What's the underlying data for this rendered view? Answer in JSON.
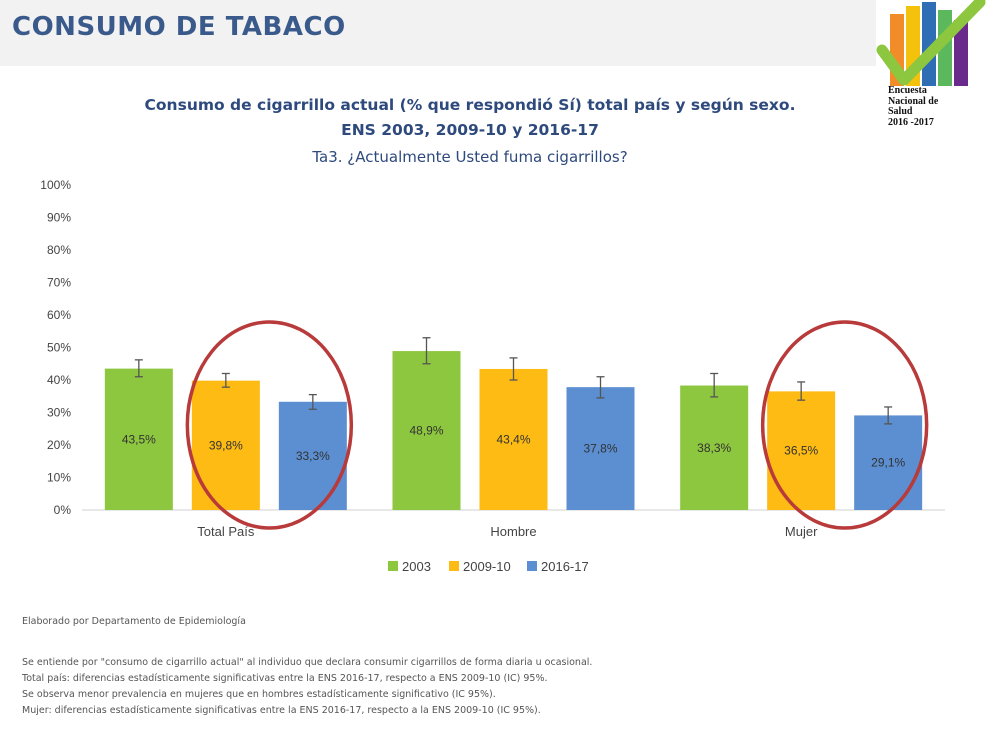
{
  "header": {
    "title": "CONSUMO DE TABACO",
    "logo_text": [
      "Encuesta",
      "Nacional de",
      "Salud",
      "2016 -2017"
    ]
  },
  "chart_data": {
    "type": "bar",
    "title_line1": "Consumo de cigarrillo actual (% que respondió Sí) total país y según sexo.",
    "title_line2": "ENS 2003, 2009-10 y 2016-17",
    "subtitle": "Ta3. ¿Actualmente Usted fuma cigarrillos?",
    "categories": [
      "Total País",
      "Hombre",
      "Mujer"
    ],
    "series": [
      {
        "name": "2003",
        "color": "#8dc63f",
        "values": [
          43.5,
          48.9,
          38.3
        ],
        "error": [
          [
            41.0,
            46.2
          ],
          [
            45.0,
            53.0
          ],
          [
            34.8,
            42.0
          ]
        ],
        "labels": [
          "43,5%",
          "48,9%",
          "38,3%"
        ]
      },
      {
        "name": "2009-10",
        "color": "#fdbb13",
        "values": [
          39.8,
          43.4,
          36.5
        ],
        "error": [
          [
            37.8,
            42.0
          ],
          [
            40.0,
            46.8
          ],
          [
            33.8,
            39.4
          ]
        ],
        "labels": [
          "39,8%",
          "43,4%",
          "36,5%"
        ]
      },
      {
        "name": "2016-17",
        "color": "#5b8fd1",
        "values": [
          33.3,
          37.8,
          29.1
        ],
        "error": [
          [
            31.0,
            35.5
          ],
          [
            34.5,
            41.0
          ],
          [
            26.5,
            31.7
          ]
        ],
        "labels": [
          "33,3%",
          "37,8%",
          "29,1%"
        ]
      }
    ],
    "yticks": [
      "0%",
      "10%",
      "20%",
      "30%",
      "40%",
      "50%",
      "60%",
      "70%",
      "80%",
      "90%",
      "100%"
    ],
    "ylim": [
      0,
      100
    ],
    "legend_position": "bottom",
    "highlighted_categories": [
      "Total País",
      "Mujer"
    ],
    "highlight_color": "#b83a3a"
  },
  "footer": {
    "credit": "Elaborado por Departamento de Epidemiología",
    "notes": [
      "Se entiende por \"consumo de cigarrillo actual\" al individuo que declara consumir cigarrillos de forma diaria u ocasional.",
      "Total país: diferencias estadísticamente significativas entre la ENS 2016-17, respecto a ENS 2009-10 (IC) 95%.",
      "Se observa menor prevalencia en mujeres que en hombres estadísticamente significativo (IC 95%).",
      "Mujer: diferencias estadísticamente significativas entre la ENS 2016-17, respecto a la ENS 2009-10 (IC 95%)."
    ]
  }
}
